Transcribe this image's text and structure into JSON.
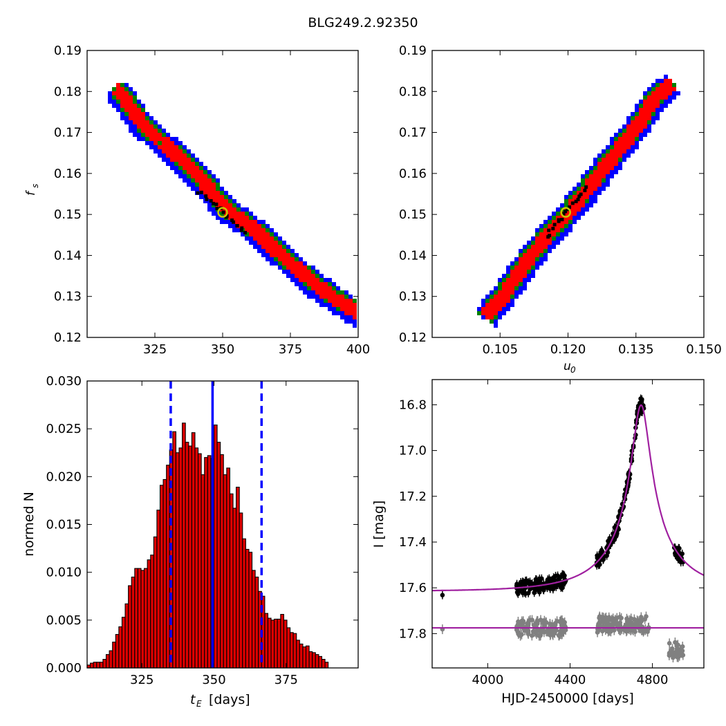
{
  "figure": {
    "title": "BLG249.2.92350"
  },
  "colors": {
    "blue": "#0000ff",
    "green": "#008000",
    "red": "#ff0000",
    "black": "#000000",
    "model": "#a020a0",
    "grey": "#808080",
    "bar": "#dd0000",
    "marker_edge": "#c8c800"
  },
  "chart_data": [
    {
      "id": "tE-fs",
      "type": "heatmap",
      "xlabel": "",
      "ylabel": "f_s",
      "xlim": [
        300,
        400
      ],
      "ylim": [
        0.12,
        0.19
      ],
      "xticks": [
        325,
        350,
        375,
        400
      ],
      "yticks": [
        0.12,
        0.13,
        0.14,
        0.15,
        0.16,
        0.17,
        0.18,
        0.19
      ],
      "description_levels": [
        "blue",
        "green",
        "red",
        "black"
      ],
      "ridge": [
        [
          310,
          0.181
        ],
        [
          320,
          0.172
        ],
        [
          330,
          0.166
        ],
        [
          340,
          0.16
        ],
        [
          350,
          0.152
        ],
        [
          360,
          0.147
        ],
        [
          370,
          0.141
        ],
        [
          380,
          0.135
        ],
        [
          390,
          0.13
        ],
        [
          400,
          0.126
        ]
      ],
      "best_fit": {
        "x": 350,
        "y": 0.1505
      }
    },
    {
      "id": "u0-fs",
      "type": "heatmap",
      "xlabel": "u_0",
      "ylabel": "",
      "xlim": [
        0.09,
        0.15
      ],
      "ylim": [
        0.12,
        0.19
      ],
      "xticks": [
        0.105,
        0.12,
        0.135,
        0.15
      ],
      "xticklabels": [
        "0.105",
        "0.120",
        "0.135",
        "0.150"
      ],
      "yticks": [
        0.12,
        0.13,
        0.14,
        0.15,
        0.16,
        0.17,
        0.18,
        0.19
      ],
      "ridge": [
        [
          0.1015,
          0.1255
        ],
        [
          0.105,
          0.13
        ],
        [
          0.11,
          0.138
        ],
        [
          0.115,
          0.145
        ],
        [
          0.12,
          0.151
        ],
        [
          0.125,
          0.158
        ],
        [
          0.13,
          0.165
        ],
        [
          0.135,
          0.172
        ],
        [
          0.139,
          0.179
        ],
        [
          0.1425,
          0.182
        ]
      ],
      "best_fit": {
        "x": 0.1195,
        "y": 0.1505
      }
    },
    {
      "id": "tE-hist",
      "type": "bar",
      "xlabel": "t_E  [days]",
      "ylabel": "normed N",
      "xlim": [
        306,
        400
      ],
      "ylim": [
        0,
        0.03
      ],
      "xticks": [
        325,
        350,
        375
      ],
      "yticks": [
        0,
        0.005,
        0.01,
        0.015,
        0.02,
        0.025,
        0.03
      ],
      "yticklabels": [
        "0.000",
        "0.005",
        "0.010",
        "0.015",
        "0.020",
        "0.025",
        "0.030"
      ],
      "bin_width": 1.1,
      "bin_start": 306,
      "values": [
        0.0003,
        0.0005,
        0.0006,
        0.0006,
        0.0006,
        0.0009,
        0.0014,
        0.0018,
        0.0027,
        0.0035,
        0.0043,
        0.0053,
        0.0067,
        0.0086,
        0.0095,
        0.0104,
        0.0104,
        0.0102,
        0.0104,
        0.0113,
        0.0118,
        0.0137,
        0.0165,
        0.0191,
        0.0197,
        0.0212,
        0.0228,
        0.0247,
        0.0225,
        0.023,
        0.0256,
        0.0236,
        0.0232,
        0.0246,
        0.023,
        0.0224,
        0.0202,
        0.022,
        0.0222,
        0.0219,
        0.0254,
        0.0236,
        0.0223,
        0.0202,
        0.0209,
        0.0182,
        0.0167,
        0.0189,
        0.0162,
        0.0135,
        0.0124,
        0.0121,
        0.0102,
        0.0095,
        0.008,
        0.0075,
        0.0057,
        0.0052,
        0.005,
        0.0051,
        0.0051,
        0.0056,
        0.005,
        0.0042,
        0.0037,
        0.0036,
        0.0029,
        0.0025,
        0.0022,
        0.0023,
        0.0017,
        0.0016,
        0.0014,
        0.0012,
        0.0009,
        0.0006
      ],
      "vlines": {
        "median": 349.5,
        "lower": 335,
        "upper": 366.5
      }
    },
    {
      "id": "lightcurve",
      "type": "scatter",
      "xlabel": "HJD-2450000 [days]",
      "ylabel": "I [mag]",
      "xlim": [
        3730,
        5050
      ],
      "ylim": [
        17.95,
        16.69
      ],
      "xticks": [
        4000,
        4400,
        4800
      ],
      "yticks": [
        16.8,
        17.0,
        17.2,
        17.4,
        17.6,
        17.8
      ],
      "yticklabels": [
        "16.8",
        "17.0",
        "17.2",
        "17.4",
        "17.6",
        "17.8"
      ],
      "model": {
        "t0": 4745,
        "tE": 350,
        "u0": 0.1195,
        "base_mag": 17.615,
        "fs": 0.1505
      },
      "residual_baseline": 17.775,
      "data_black_segments": [
        {
          "x0": 3780,
          "x1": 3780,
          "y": 17.615
        },
        {
          "x0": 4140,
          "x1": 4380,
          "y": 17.6
        },
        {
          "x0": 4530,
          "x1": 4760,
          "y": 17.0
        },
        {
          "x0": 4905,
          "x1": 4950,
          "y": 17.55
        }
      ],
      "data_grey_segments": [
        {
          "x0": 3780,
          "x1": 3780,
          "y": 17.775
        },
        {
          "x0": 4140,
          "x1": 4380,
          "y": 17.775
        },
        {
          "x0": 4530,
          "x1": 4790,
          "y": 17.76
        },
        {
          "x0": 4880,
          "x1": 4950,
          "y": 17.87
        }
      ]
    }
  ]
}
